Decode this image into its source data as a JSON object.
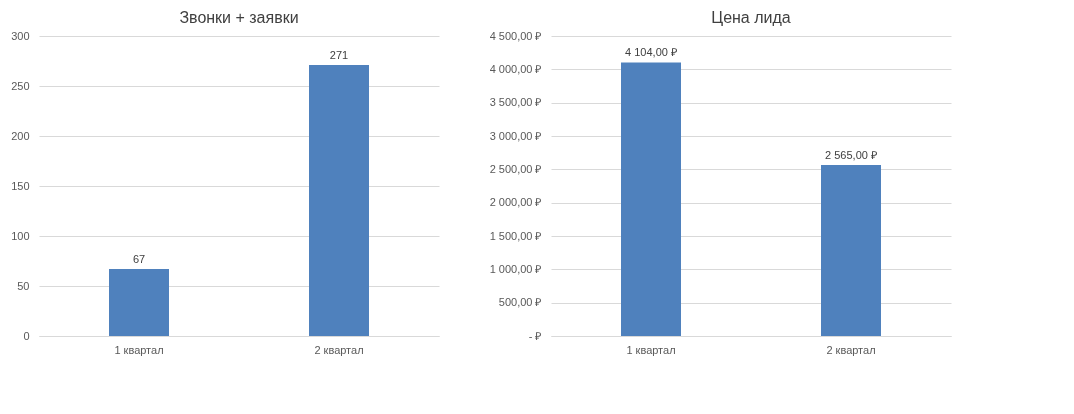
{
  "chart_data": [
    {
      "type": "bar",
      "title": "Звонки + заявки",
      "categories": [
        "1 квартал",
        "2 квартал"
      ],
      "series": [
        {
          "color": "#4f81bd",
          "values": [
            67,
            271
          ]
        }
      ],
      "ylim": [
        0,
        300
      ],
      "yticks": [
        0,
        50,
        100,
        150,
        200,
        250,
        300
      ],
      "grid": "y",
      "data_labels": true
    },
    {
      "type": "bar",
      "title": "Цена лида",
      "categories": [
        "1 квартал",
        "2 квартал"
      ],
      "series": [
        {
          "color": "#4f81bd",
          "values": [
            4104,
            2565
          ],
          "value_labels": [
            "4 104,00 ₽",
            "2 565,00 ₽"
          ]
        }
      ],
      "ylim": [
        0,
        4500
      ],
      "yticks": [
        {
          "value": 0,
          "label": "-  ₽"
        },
        {
          "value": 500,
          "label": "500,00 ₽"
        },
        {
          "value": 1000,
          "label": "1 000,00 ₽"
        },
        {
          "value": 1500,
          "label": "1 500,00 ₽"
        },
        {
          "value": 2000,
          "label": "2 000,00 ₽"
        },
        {
          "value": 2500,
          "label": "2 500,00 ₽"
        },
        {
          "value": 3000,
          "label": "3 000,00 ₽"
        },
        {
          "value": 3500,
          "label": "3 500,00 ₽"
        },
        {
          "value": 4000,
          "label": "4 000,00 ₽"
        },
        {
          "value": 4500,
          "label": "4 500,00 ₽"
        }
      ],
      "grid": "y"
    }
  ]
}
